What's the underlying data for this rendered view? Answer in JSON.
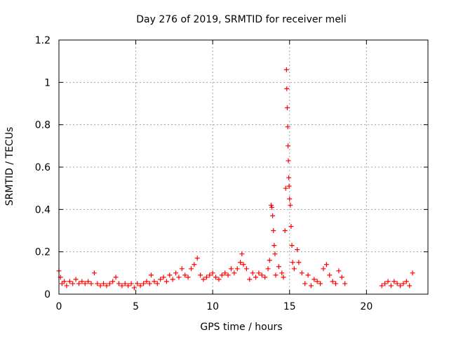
{
  "chart_data": {
    "type": "scatter",
    "title": "Day 276 of 2019, SRMTID for receiver meli",
    "xlabel": "GPS time / hours",
    "ylabel": "SRMTID / TECUs",
    "xlim": [
      0,
      24
    ],
    "ylim": [
      0,
      1.2
    ],
    "x_ticks": [
      0,
      5,
      10,
      15,
      20
    ],
    "y_ticks": [
      0,
      0.2,
      0.4,
      0.6,
      0.8,
      1,
      1.2
    ],
    "y_tick_labels": [
      "0",
      "0.2",
      "0.4",
      "0.6",
      "0.8",
      "1",
      "1.2"
    ],
    "grid": true,
    "marker": "+",
    "colors": {
      "series": "#ff0000",
      "grid": "#a0a0a0",
      "axis": "#000000"
    },
    "series": [
      {
        "name": "SRMTID",
        "points": [
          [
            0.0,
            0.11
          ],
          [
            0.1,
            0.08
          ],
          [
            0.2,
            0.05
          ],
          [
            0.35,
            0.06
          ],
          [
            0.5,
            0.04
          ],
          [
            0.7,
            0.06
          ],
          [
            0.9,
            0.05
          ],
          [
            1.1,
            0.07
          ],
          [
            1.3,
            0.05
          ],
          [
            1.5,
            0.06
          ],
          [
            1.7,
            0.05
          ],
          [
            1.9,
            0.06
          ],
          [
            2.1,
            0.05
          ],
          [
            2.3,
            0.1
          ],
          [
            2.5,
            0.05
          ],
          [
            2.7,
            0.04
          ],
          [
            2.9,
            0.05
          ],
          [
            3.1,
            0.04
          ],
          [
            3.3,
            0.05
          ],
          [
            3.5,
            0.06
          ],
          [
            3.7,
            0.08
          ],
          [
            3.9,
            0.05
          ],
          [
            4.1,
            0.04
          ],
          [
            4.3,
            0.05
          ],
          [
            4.5,
            0.04
          ],
          [
            4.7,
            0.05
          ],
          [
            4.9,
            0.03
          ],
          [
            5.1,
            0.05
          ],
          [
            5.3,
            0.04
          ],
          [
            5.5,
            0.05
          ],
          [
            5.7,
            0.06
          ],
          [
            5.9,
            0.05
          ],
          [
            6.0,
            0.09
          ],
          [
            6.2,
            0.06
          ],
          [
            6.4,
            0.05
          ],
          [
            6.6,
            0.07
          ],
          [
            6.8,
            0.08
          ],
          [
            7.0,
            0.06
          ],
          [
            7.2,
            0.09
          ],
          [
            7.4,
            0.07
          ],
          [
            7.6,
            0.1
          ],
          [
            7.8,
            0.08
          ],
          [
            8.0,
            0.12
          ],
          [
            8.2,
            0.09
          ],
          [
            8.4,
            0.08
          ],
          [
            8.6,
            0.12
          ],
          [
            8.8,
            0.14
          ],
          [
            9.0,
            0.17
          ],
          [
            9.2,
            0.09
          ],
          [
            9.4,
            0.07
          ],
          [
            9.6,
            0.08
          ],
          [
            9.8,
            0.09
          ],
          [
            10.0,
            0.1
          ],
          [
            10.2,
            0.08
          ],
          [
            10.4,
            0.07
          ],
          [
            10.6,
            0.09
          ],
          [
            10.8,
            0.1
          ],
          [
            11.0,
            0.09
          ],
          [
            11.2,
            0.12
          ],
          [
            11.4,
            0.1
          ],
          [
            11.6,
            0.12
          ],
          [
            11.8,
            0.15
          ],
          [
            11.9,
            0.19
          ],
          [
            12.0,
            0.14
          ],
          [
            12.2,
            0.12
          ],
          [
            12.4,
            0.07
          ],
          [
            12.6,
            0.1
          ],
          [
            12.8,
            0.08
          ],
          [
            13.0,
            0.1
          ],
          [
            13.2,
            0.09
          ],
          [
            13.4,
            0.08
          ],
          [
            13.6,
            0.12
          ],
          [
            13.7,
            0.16
          ],
          [
            13.8,
            0.42
          ],
          [
            13.85,
            0.41
          ],
          [
            13.9,
            0.37
          ],
          [
            13.95,
            0.3
          ],
          [
            14.0,
            0.23
          ],
          [
            14.05,
            0.19
          ],
          [
            14.1,
            0.09
          ],
          [
            14.3,
            0.13
          ],
          [
            14.5,
            0.1
          ],
          [
            14.6,
            0.08
          ],
          [
            14.7,
            0.3
          ],
          [
            14.75,
            0.5
          ],
          [
            14.8,
            1.06
          ],
          [
            14.82,
            0.97
          ],
          [
            14.85,
            0.88
          ],
          [
            14.88,
            0.79
          ],
          [
            14.9,
            0.7
          ],
          [
            14.92,
            0.63
          ],
          [
            14.95,
            0.55
          ],
          [
            14.97,
            0.51
          ],
          [
            15.0,
            0.45
          ],
          [
            15.05,
            0.42
          ],
          [
            15.1,
            0.32
          ],
          [
            15.15,
            0.23
          ],
          [
            15.2,
            0.15
          ],
          [
            15.3,
            0.12
          ],
          [
            15.5,
            0.21
          ],
          [
            15.6,
            0.15
          ],
          [
            15.8,
            0.1
          ],
          [
            16.0,
            0.05
          ],
          [
            16.2,
            0.09
          ],
          [
            16.4,
            0.04
          ],
          [
            16.6,
            0.07
          ],
          [
            16.8,
            0.06
          ],
          [
            17.0,
            0.05
          ],
          [
            17.2,
            0.12
          ],
          [
            17.4,
            0.14
          ],
          [
            17.6,
            0.09
          ],
          [
            17.8,
            0.06
          ],
          [
            18.0,
            0.05
          ],
          [
            18.2,
            0.11
          ],
          [
            18.4,
            0.08
          ],
          [
            18.6,
            0.05
          ],
          [
            21.0,
            0.04
          ],
          [
            21.2,
            0.05
          ],
          [
            21.4,
            0.06
          ],
          [
            21.6,
            0.04
          ],
          [
            21.8,
            0.06
          ],
          [
            22.0,
            0.05
          ],
          [
            22.2,
            0.04
          ],
          [
            22.4,
            0.05
          ],
          [
            22.6,
            0.06
          ],
          [
            22.8,
            0.04
          ],
          [
            23.0,
            0.1
          ]
        ]
      }
    ]
  }
}
